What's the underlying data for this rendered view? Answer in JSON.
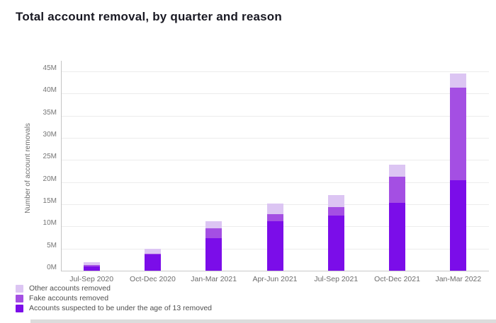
{
  "chart_data": {
    "type": "bar",
    "stacked": true,
    "title": "Total account removal, by quarter and reason",
    "ylabel": "Number of account removals",
    "xlabel": "",
    "value_unit": "millions",
    "ylim": [
      0,
      45
    ],
    "ytick_step": 5,
    "yticks": [
      "0M",
      "5M",
      "10M",
      "15M",
      "20M",
      "25M",
      "30M",
      "35M",
      "40M",
      "45M"
    ],
    "grid": "horizontal",
    "legend_position": "bottom-left",
    "categories": [
      "Jul-Sep 2020",
      "Oct-Dec 2020",
      "Jan-Mar 2021",
      "Apr-Jun 2021",
      "Jul-Sep 2021",
      "Oct-Dec 2021",
      "Jan-Mar 2022"
    ],
    "series": [
      {
        "name": "Accounts suspected to be under the age of 13 removed",
        "color": "#7b0de9",
        "values": [
          0.9,
          3.6,
          7.3,
          11.2,
          12.4,
          15.3,
          20.4
        ]
      },
      {
        "name": "Fake accounts removed",
        "color": "#a44fe3",
        "values": [
          0.3,
          0.3,
          2.3,
          1.6,
          1.9,
          6.0,
          21.0
        ]
      },
      {
        "name": "Other accounts removed",
        "color": "#dcc5f3",
        "values": [
          0.7,
          1.0,
          1.6,
          2.3,
          2.7,
          2.7,
          3.1
        ]
      }
    ],
    "totals": [
      1.9,
      4.9,
      11.2,
      15.1,
      17.0,
      24.0,
      44.5
    ],
    "legend": [
      {
        "label": "Other accounts removed",
        "color": "#dcc5f3"
      },
      {
        "label": "Fake accounts removed",
        "color": "#a44fe3"
      },
      {
        "label": "Accounts suspected to be under the age of 13 removed",
        "color": "#7b0de9"
      }
    ],
    "colors": {
      "grid": "#ececec",
      "baseline": "#c9c9c9",
      "axis_line": "#c4c4c4"
    }
  }
}
